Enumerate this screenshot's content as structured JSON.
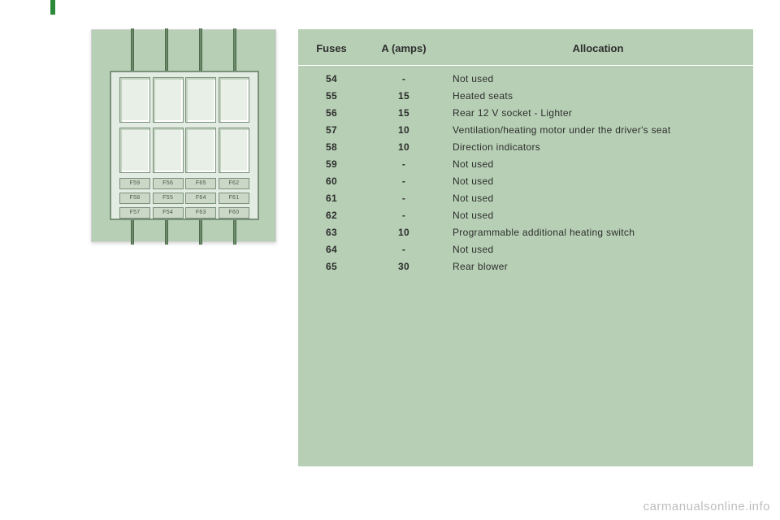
{
  "colors": {
    "panel_bg": "#b7d0b5",
    "diagram_inner_bg": "#e3ece2",
    "diagram_border": "#7a907a",
    "wire": "#6a8a68",
    "text": "#2d2d2d",
    "header_rule": "#ffffff",
    "side_tab": "#2a8a3a",
    "watermark": "#bdbdbd"
  },
  "typography": {
    "header_fontsize": 13,
    "row_fontsize": 12,
    "label_fontsize": 7,
    "font_family": "Arial"
  },
  "diagram": {
    "fuse_labels_top": [
      "F59",
      "F56",
      "F65",
      "F62"
    ],
    "fuse_labels_mid": [
      "F58",
      "F55",
      "F64",
      "F61"
    ],
    "fuse_labels_bottom": [
      "F57",
      "F54",
      "F63",
      "F60"
    ]
  },
  "table": {
    "columns": {
      "fuses": "Fuses",
      "amps": "A (amps)",
      "allocation": "Allocation"
    },
    "col_widths": {
      "fuses": 82,
      "amps": 96
    },
    "rows": [
      {
        "fuse": "54",
        "amps": "-",
        "allocation": "Not used"
      },
      {
        "fuse": "55",
        "amps": "15",
        "allocation": "Heated seats"
      },
      {
        "fuse": "56",
        "amps": "15",
        "allocation": "Rear 12 V socket - Lighter"
      },
      {
        "fuse": "57",
        "amps": "10",
        "allocation": "Ventilation/heating motor under the driver's seat"
      },
      {
        "fuse": "58",
        "amps": "10",
        "allocation": "Direction indicators"
      },
      {
        "fuse": "59",
        "amps": "-",
        "allocation": "Not used"
      },
      {
        "fuse": "60",
        "amps": "-",
        "allocation": "Not used"
      },
      {
        "fuse": "61",
        "amps": "-",
        "allocation": "Not used"
      },
      {
        "fuse": "62",
        "amps": "-",
        "allocation": "Not used"
      },
      {
        "fuse": "63",
        "amps": "10",
        "allocation": "Programmable additional heating switch"
      },
      {
        "fuse": "64",
        "amps": "-",
        "allocation": "Not used"
      },
      {
        "fuse": "65",
        "amps": "30",
        "allocation": "Rear blower"
      }
    ]
  },
  "watermark": "carmanualsonline.info"
}
